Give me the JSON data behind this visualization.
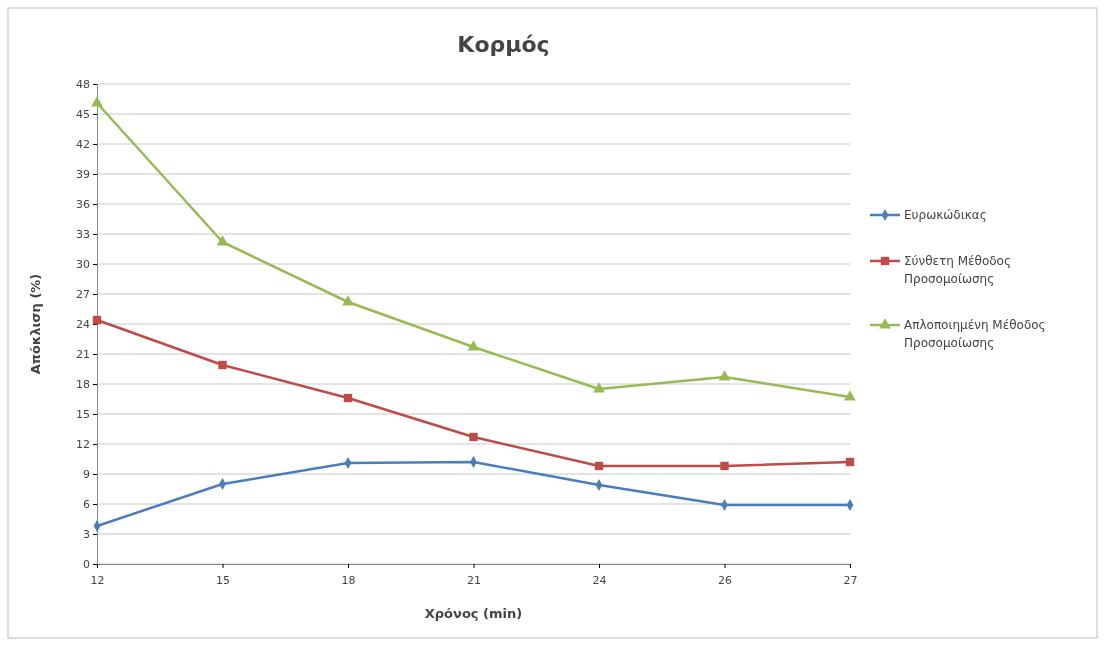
{
  "chart_data": {
    "type": "line",
    "title": "Κορμός",
    "xlabel": "Χρόνος (min)",
    "ylabel": "Απόκλιση (%)",
    "categories": [
      "12",
      "15",
      "18",
      "21",
      "24",
      "26",
      "27"
    ],
    "ylim": [
      0,
      48
    ],
    "yticks": [
      0,
      3,
      6,
      9,
      12,
      15,
      18,
      21,
      24,
      27,
      30,
      33,
      36,
      39,
      42,
      45,
      48
    ],
    "grid": "y",
    "legend": "right",
    "series": [
      {
        "name": "Ευρωκώδικας",
        "color": "#4a7ebb",
        "marker": "diamond",
        "values": [
          3.8,
          8.0,
          10.1,
          10.2,
          7.9,
          5.9,
          5.9
        ]
      },
      {
        "name": "Σύνθετη Μέθοδος Προσομοίωσης",
        "color": "#be4b48",
        "marker": "square",
        "values": [
          24.4,
          19.9,
          16.6,
          12.7,
          9.8,
          9.8,
          10.2
        ]
      },
      {
        "name": "Απλοποιημένη Μέθοδος Προσομοίωσης",
        "color": "#98b954",
        "marker": "triangle",
        "values": [
          46.1,
          32.2,
          26.2,
          21.7,
          17.5,
          18.7,
          16.7
        ]
      }
    ]
  }
}
